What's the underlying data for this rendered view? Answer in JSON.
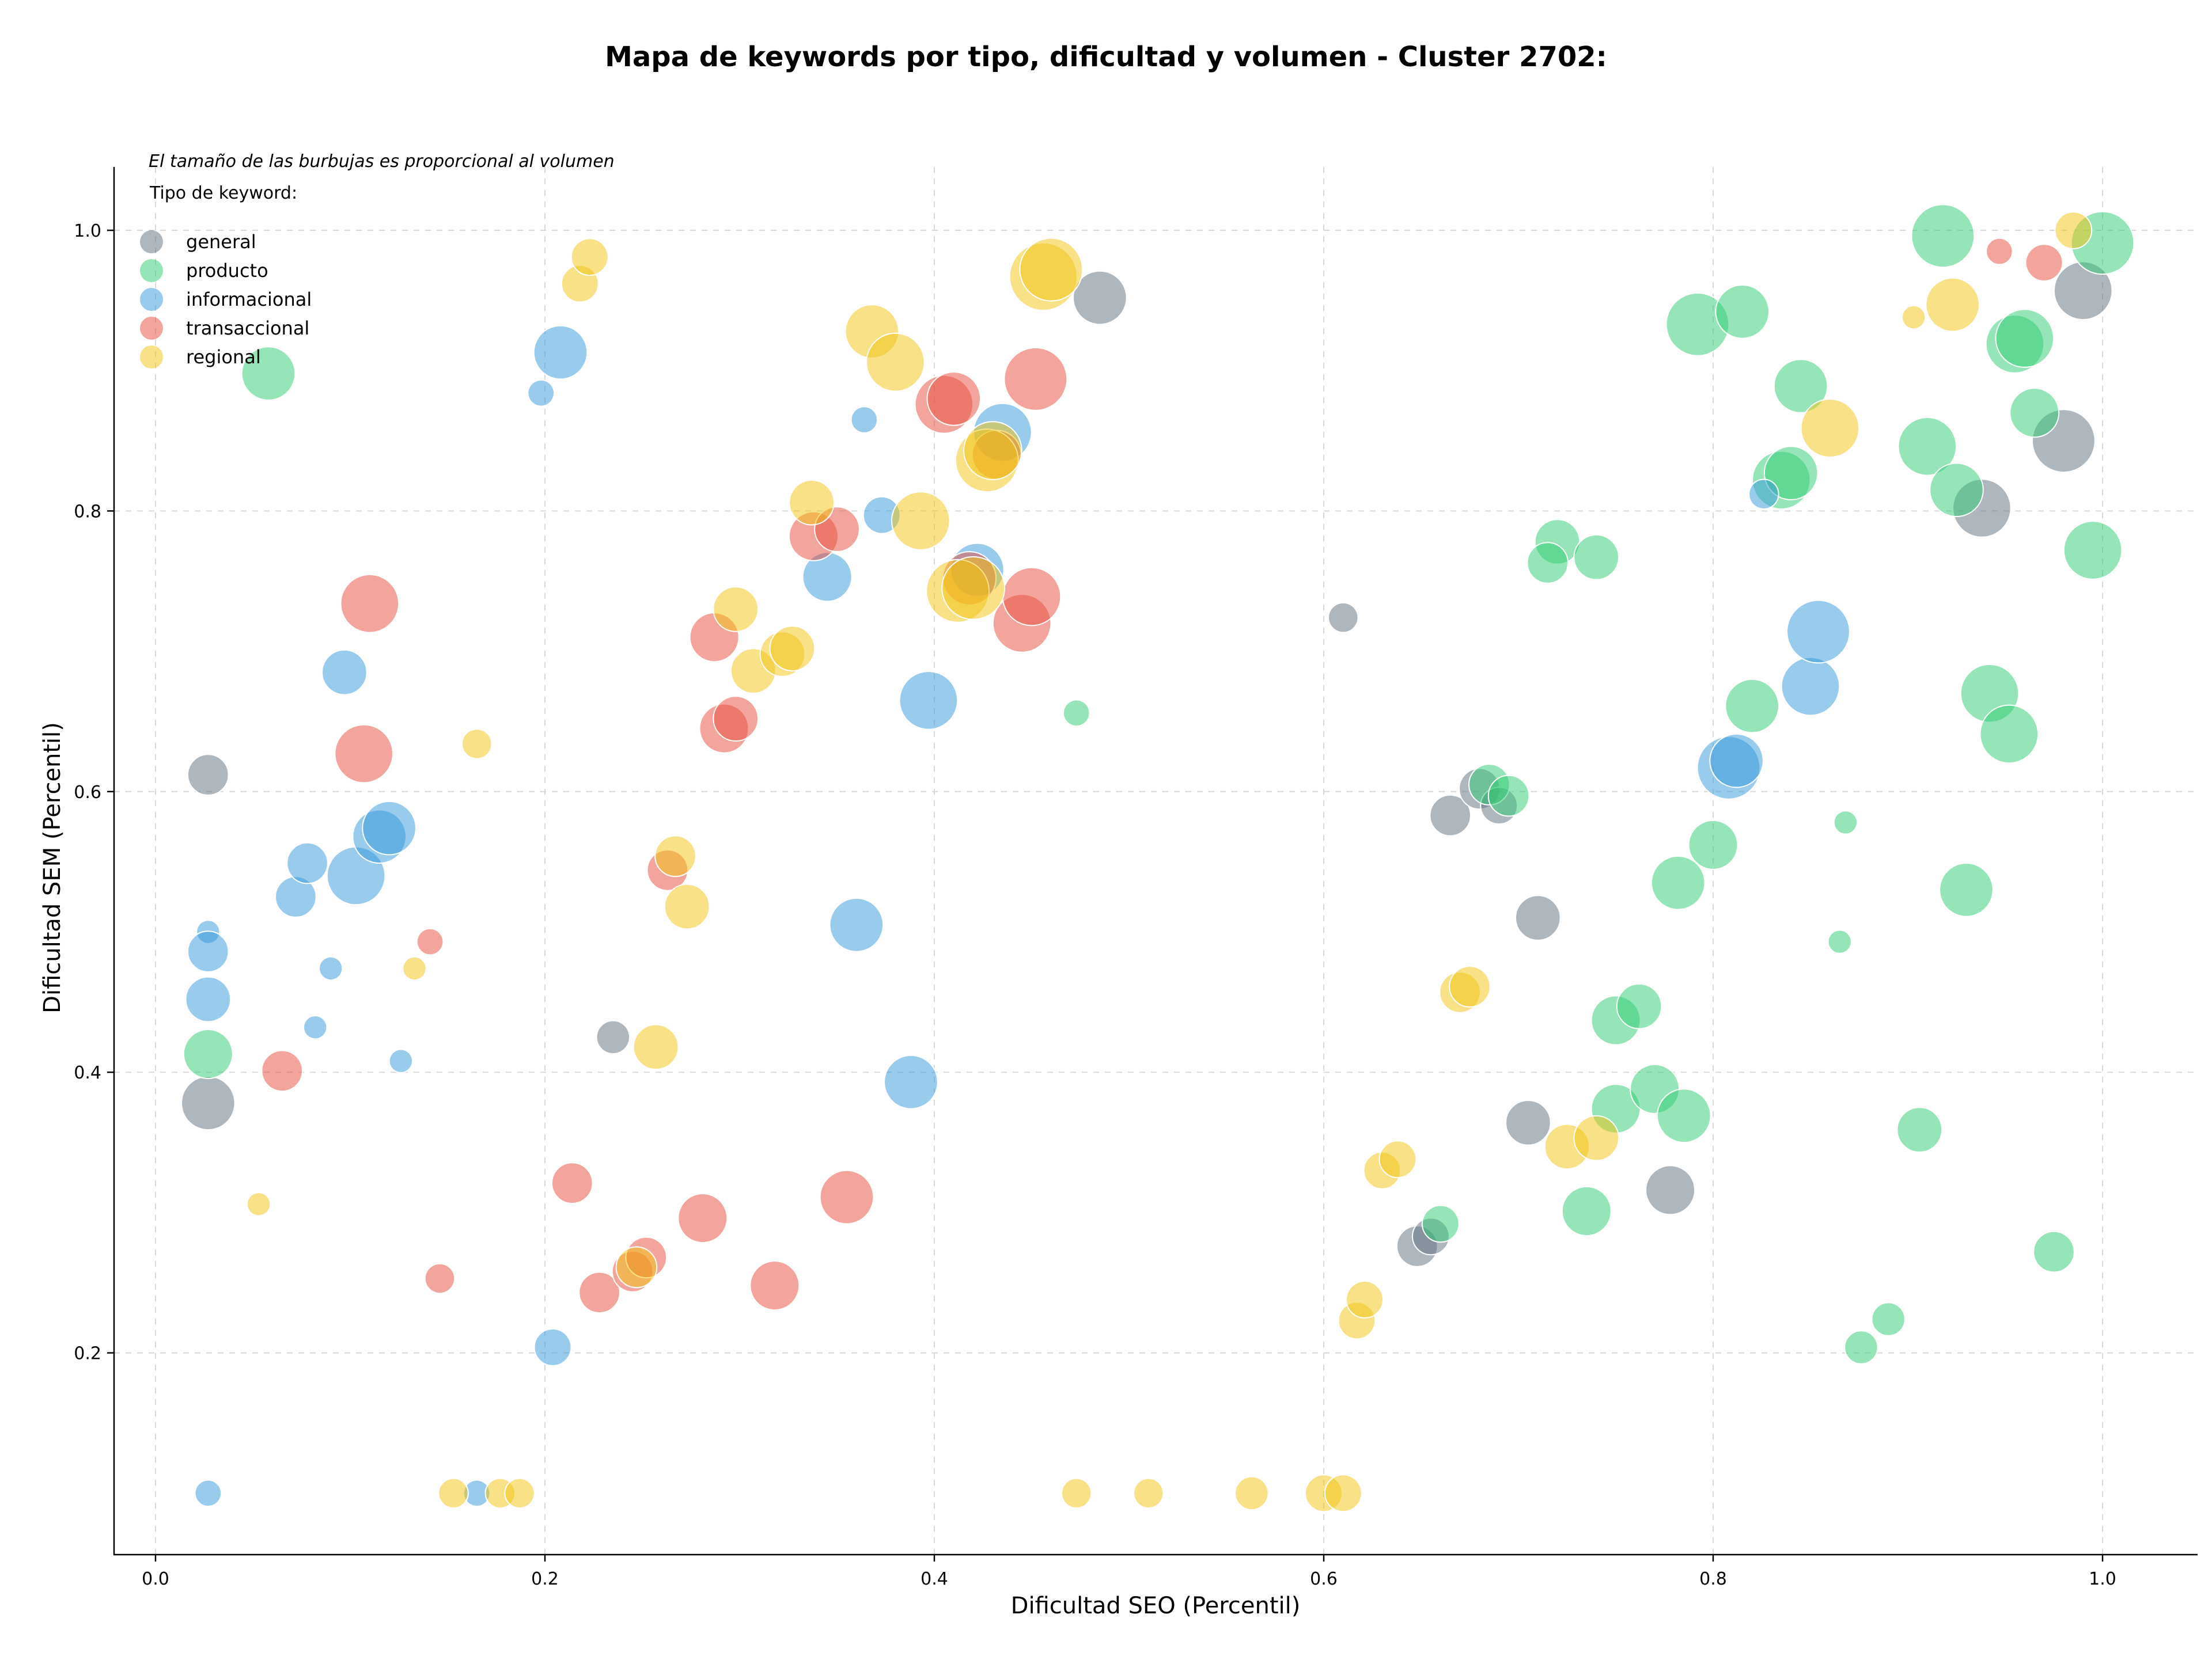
{
  "chart_data": {
    "type": "scatter",
    "title": "Mapa de keywords por tipo, dificultad y volumen - Cluster 2702:",
    "xlabel": "Dificultad SEO (Percentil)",
    "ylabel": "Dificultad SEM (Percentil)",
    "note": "El tamaño de las burbujas es proporcional al volumen",
    "legend_title": "Tipo de keyword:",
    "legend_position": "top-left",
    "grid": true,
    "xlim": [
      -0.02,
      1.05
    ],
    "ylim": [
      0.058,
      1.045
    ],
    "x_ticks": [
      "0.0",
      "0.2",
      "0.4",
      "0.6",
      "0.8",
      "1.0"
    ],
    "y_ticks": [
      "0.2",
      "0.4",
      "0.6",
      "0.8",
      "1.0"
    ],
    "size_encoding": "volume (relative, 0-1)",
    "series": [
      {
        "name": "general",
        "color": "#5d6d7e",
        "points": [
          [
            0.027,
            0.612,
            0.55
          ],
          [
            0.027,
            0.378,
            0.7
          ],
          [
            0.235,
            0.425,
            0.45
          ],
          [
            0.485,
            0.952,
            0.7
          ],
          [
            0.61,
            0.724,
            0.4
          ],
          [
            0.665,
            0.583,
            0.55
          ],
          [
            0.68,
            0.602,
            0.55
          ],
          [
            0.69,
            0.59,
            0.5
          ],
          [
            0.71,
            0.51,
            0.6
          ],
          [
            0.705,
            0.364,
            0.6
          ],
          [
            0.648,
            0.276,
            0.55
          ],
          [
            0.655,
            0.283,
            0.5
          ],
          [
            0.778,
            0.316,
            0.65
          ],
          [
            0.938,
            0.802,
            0.75
          ],
          [
            0.98,
            0.85,
            0.8
          ],
          [
            0.99,
            0.957,
            0.75
          ]
        ]
      },
      {
        "name": "producto",
        "color": "#2ecc71",
        "points": [
          [
            0.058,
            0.898,
            0.7
          ],
          [
            0.027,
            0.413,
            0.65
          ],
          [
            0.473,
            0.656,
            0.35
          ],
          [
            0.685,
            0.605,
            0.55
          ],
          [
            0.695,
            0.597,
            0.55
          ],
          [
            0.66,
            0.292,
            0.5
          ],
          [
            0.72,
            0.778,
            0.6
          ],
          [
            0.715,
            0.763,
            0.55
          ],
          [
            0.74,
            0.767,
            0.6
          ],
          [
            0.735,
            0.301,
            0.65
          ],
          [
            0.75,
            0.437,
            0.65
          ],
          [
            0.762,
            0.447,
            0.6
          ],
          [
            0.75,
            0.374,
            0.65
          ],
          [
            0.77,
            0.388,
            0.65
          ],
          [
            0.785,
            0.369,
            0.7
          ],
          [
            0.782,
            0.535,
            0.7
          ],
          [
            0.8,
            0.562,
            0.65
          ],
          [
            0.792,
            0.933,
            0.8
          ],
          [
            0.815,
            0.942,
            0.7
          ],
          [
            0.82,
            0.661,
            0.7
          ],
          [
            0.835,
            0.822,
            0.75
          ],
          [
            0.845,
            0.889,
            0.7
          ],
          [
            0.84,
            0.827,
            0.7
          ],
          [
            0.865,
            0.493,
            0.3
          ],
          [
            0.868,
            0.578,
            0.3
          ],
          [
            0.876,
            0.204,
            0.45
          ],
          [
            0.89,
            0.224,
            0.45
          ],
          [
            0.906,
            0.359,
            0.6
          ],
          [
            0.91,
            0.846,
            0.75
          ],
          [
            0.918,
            0.996,
            0.8
          ],
          [
            0.925,
            0.815,
            0.7
          ],
          [
            0.93,
            0.53,
            0.7
          ],
          [
            0.942,
            0.67,
            0.75
          ],
          [
            0.952,
            0.641,
            0.75
          ],
          [
            0.955,
            0.919,
            0.75
          ],
          [
            0.96,
            0.923,
            0.75
          ],
          [
            0.965,
            0.87,
            0.65
          ],
          [
            0.975,
            0.272,
            0.55
          ],
          [
            0.995,
            0.772,
            0.75
          ],
          [
            1.0,
            0.991,
            0.8
          ]
        ]
      },
      {
        "name": "informacional",
        "color": "#3498db",
        "points": [
          [
            0.027,
            0.5,
            0.3
          ],
          [
            0.027,
            0.486,
            0.55
          ],
          [
            0.027,
            0.452,
            0.6
          ],
          [
            0.027,
            0.1,
            0.35
          ],
          [
            0.072,
            0.525,
            0.55
          ],
          [
            0.078,
            0.549,
            0.55
          ],
          [
            0.082,
            0.432,
            0.3
          ],
          [
            0.09,
            0.474,
            0.3
          ],
          [
            0.097,
            0.685,
            0.6
          ],
          [
            0.103,
            0.54,
            0.75
          ],
          [
            0.115,
            0.568,
            0.7
          ],
          [
            0.12,
            0.574,
            0.7
          ],
          [
            0.126,
            0.408,
            0.3
          ],
          [
            0.165,
            0.1,
            0.35
          ],
          [
            0.198,
            0.884,
            0.35
          ],
          [
            0.208,
            0.913,
            0.7
          ],
          [
            0.204,
            0.204,
            0.5
          ],
          [
            0.345,
            0.753,
            0.65
          ],
          [
            0.36,
            0.505,
            0.7
          ],
          [
            0.364,
            0.865,
            0.35
          ],
          [
            0.373,
            0.797,
            0.5
          ],
          [
            0.388,
            0.393,
            0.7
          ],
          [
            0.397,
            0.665,
            0.75
          ],
          [
            0.422,
            0.758,
            0.7
          ],
          [
            0.435,
            0.856,
            0.75
          ],
          [
            0.808,
            0.617,
            0.8
          ],
          [
            0.812,
            0.622,
            0.7
          ],
          [
            0.826,
            0.812,
            0.4
          ],
          [
            0.85,
            0.675,
            0.75
          ],
          [
            0.854,
            0.714,
            0.8
          ]
        ]
      },
      {
        "name": "transaccional",
        "color": "#e74c3c",
        "points": [
          [
            0.065,
            0.401,
            0.55
          ],
          [
            0.11,
            0.734,
            0.75
          ],
          [
            0.107,
            0.627,
            0.75
          ],
          [
            0.141,
            0.493,
            0.35
          ],
          [
            0.146,
            0.253,
            0.4
          ],
          [
            0.214,
            0.321,
            0.55
          ],
          [
            0.228,
            0.243,
            0.55
          ],
          [
            0.245,
            0.258,
            0.55
          ],
          [
            0.252,
            0.268,
            0.55
          ],
          [
            0.263,
            0.544,
            0.55
          ],
          [
            0.281,
            0.296,
            0.65
          ],
          [
            0.287,
            0.71,
            0.65
          ],
          [
            0.292,
            0.645,
            0.65
          ],
          [
            0.298,
            0.652,
            0.6
          ],
          [
            0.318,
            0.248,
            0.65
          ],
          [
            0.338,
            0.782,
            0.65
          ],
          [
            0.35,
            0.787,
            0.6
          ],
          [
            0.355,
            0.311,
            0.7
          ],
          [
            0.405,
            0.876,
            0.75
          ],
          [
            0.41,
            0.88,
            0.7
          ],
          [
            0.418,
            0.752,
            0.7
          ],
          [
            0.432,
            0.84,
            0.65
          ],
          [
            0.445,
            0.72,
            0.75
          ],
          [
            0.45,
            0.739,
            0.75
          ],
          [
            0.452,
            0.894,
            0.8
          ],
          [
            0.947,
            0.985,
            0.35
          ],
          [
            0.97,
            0.977,
            0.5
          ]
        ]
      },
      {
        "name": "regional",
        "color": "#f1c40f",
        "points": [
          [
            0.053,
            0.306,
            0.3
          ],
          [
            0.133,
            0.474,
            0.3
          ],
          [
            0.153,
            0.1,
            0.4
          ],
          [
            0.165,
            0.634,
            0.4
          ],
          [
            0.177,
            0.1,
            0.4
          ],
          [
            0.187,
            0.1,
            0.4
          ],
          [
            0.218,
            0.962,
            0.5
          ],
          [
            0.223,
            0.981,
            0.5
          ],
          [
            0.247,
            0.261,
            0.55
          ],
          [
            0.257,
            0.418,
            0.6
          ],
          [
            0.267,
            0.554,
            0.55
          ],
          [
            0.273,
            0.518,
            0.6
          ],
          [
            0.298,
            0.73,
            0.6
          ],
          [
            0.307,
            0.686,
            0.6
          ],
          [
            0.322,
            0.698,
            0.6
          ],
          [
            0.327,
            0.702,
            0.6
          ],
          [
            0.337,
            0.806,
            0.6
          ],
          [
            0.368,
            0.928,
            0.7
          ],
          [
            0.38,
            0.906,
            0.75
          ],
          [
            0.393,
            0.793,
            0.75
          ],
          [
            0.412,
            0.743,
            0.8
          ],
          [
            0.42,
            0.745,
            0.8
          ],
          [
            0.427,
            0.836,
            0.8
          ],
          [
            0.43,
            0.843,
            0.75
          ],
          [
            0.456,
            0.967,
            0.85
          ],
          [
            0.46,
            0.972,
            0.8
          ],
          [
            0.473,
            0.1,
            0.4
          ],
          [
            0.51,
            0.1,
            0.4
          ],
          [
            0.563,
            0.1,
            0.45
          ],
          [
            0.6,
            0.1,
            0.5
          ],
          [
            0.61,
            0.1,
            0.5
          ],
          [
            0.617,
            0.223,
            0.5
          ],
          [
            0.621,
            0.238,
            0.5
          ],
          [
            0.63,
            0.33,
            0.5
          ],
          [
            0.638,
            0.338,
            0.5
          ],
          [
            0.67,
            0.457,
            0.55
          ],
          [
            0.675,
            0.461,
            0.55
          ],
          [
            0.725,
            0.347,
            0.6
          ],
          [
            0.74,
            0.353,
            0.6
          ],
          [
            0.86,
            0.859,
            0.75
          ],
          [
            0.903,
            0.938,
            0.3
          ],
          [
            0.923,
            0.947,
            0.7
          ],
          [
            0.985,
            1.0,
            0.5
          ]
        ]
      }
    ]
  }
}
